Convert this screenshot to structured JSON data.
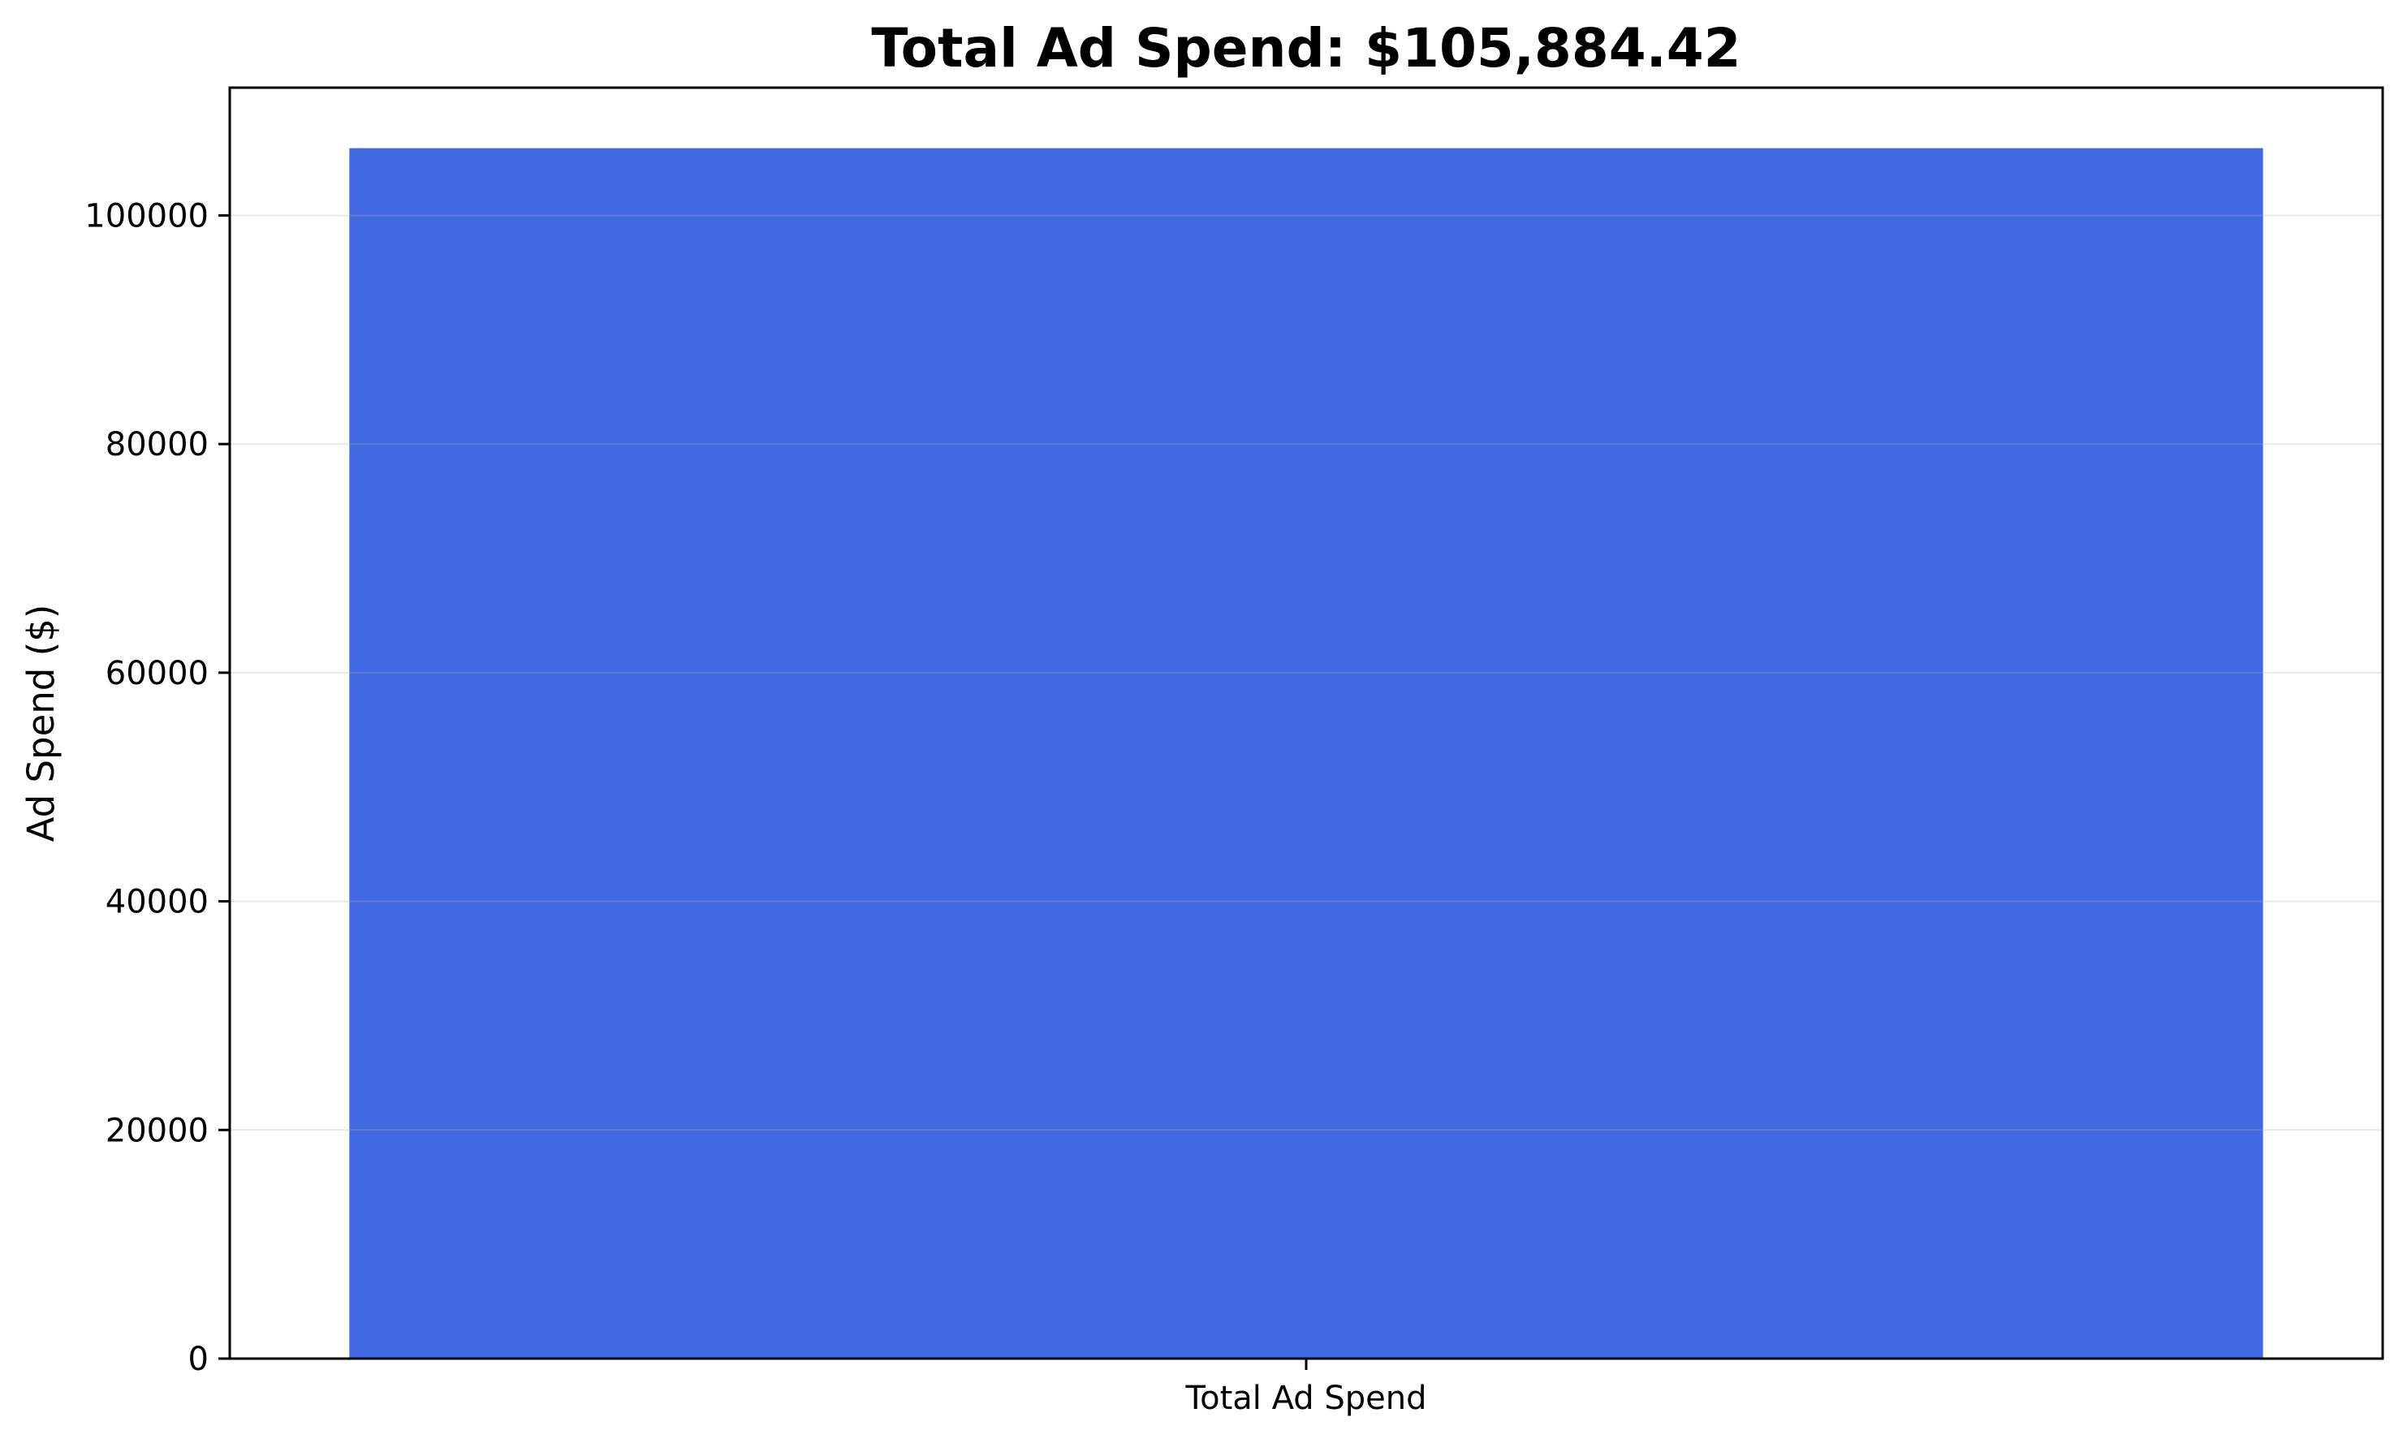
{
  "chart_data": {
    "type": "bar",
    "title": "Total Ad Spend: $105,884.42",
    "xlabel": "",
    "ylabel": "Ad Spend ($)",
    "categories": [
      "Total Ad Spend"
    ],
    "values": [
      105884.42
    ],
    "ylim": [
      0,
      111178.64
    ],
    "yticks": [
      0,
      20000,
      40000,
      60000,
      80000,
      100000
    ],
    "ytick_labels": [
      "0",
      "20000",
      "40000",
      "60000",
      "80000",
      "100000"
    ],
    "grid": "y",
    "legend": "none",
    "colors": {
      "bar": "#4169e1",
      "grid": "#e0e0e0",
      "axes": "#000000"
    }
  }
}
